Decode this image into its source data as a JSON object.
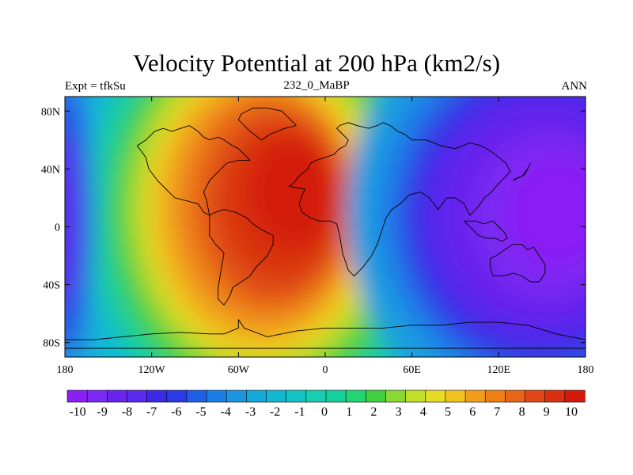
{
  "chart_data": {
    "type": "heatmap",
    "title": "Velocity Potential at 200 hPa (km2/s)",
    "left_label": "Expt = tfkSu",
    "center_label": "232_0_MaBP",
    "right_label": "ANN",
    "x_ticks": [
      "180",
      "120W",
      "60W",
      "0",
      "60E",
      "120E",
      "180"
    ],
    "x_tick_values": [
      -180,
      -120,
      -60,
      0,
      60,
      120,
      180
    ],
    "y_ticks": [
      "80N",
      "40N",
      "0",
      "40S",
      "80S"
    ],
    "y_tick_values": [
      80,
      40,
      0,
      -40,
      -80
    ],
    "xlim": [
      -180,
      180
    ],
    "ylim": [
      -90,
      90
    ],
    "colorbar_labels": [
      "-10",
      "-9",
      "-8",
      "-7",
      "-6",
      "-5",
      "-4",
      "-3",
      "-2",
      "-1",
      "0",
      "1",
      "2",
      "3",
      "4",
      "5",
      "6",
      "7",
      "8",
      "9",
      "10"
    ],
    "colorbar_colors": [
      "#8a1ff5",
      "#7a2af2",
      "#6a22ee",
      "#5a2aee",
      "#3a2ae6",
      "#2a3ae6",
      "#1f5fe6",
      "#1a7ee6",
      "#1a96e0",
      "#12a8d8",
      "#10b8d0",
      "#12c4c4",
      "#18cdb2",
      "#14d09a",
      "#22d472",
      "#40d040",
      "#8ad832",
      "#c2de28",
      "#e6dc24",
      "#f2c21e",
      "#f29e1c",
      "#ee7e18",
      "#e86418",
      "#e04818",
      "#d83010",
      "#d41a0a"
    ],
    "centers": [
      {
        "name": "positive-max",
        "lon": -20,
        "lat": 20,
        "value": 10.5
      },
      {
        "name": "negative-min",
        "lon": 145,
        "lat": 10,
        "value": -9.8
      }
    ]
  },
  "colors": {
    "background": "#ffffff",
    "axes": "#000000",
    "continent_outline": "#000000"
  }
}
